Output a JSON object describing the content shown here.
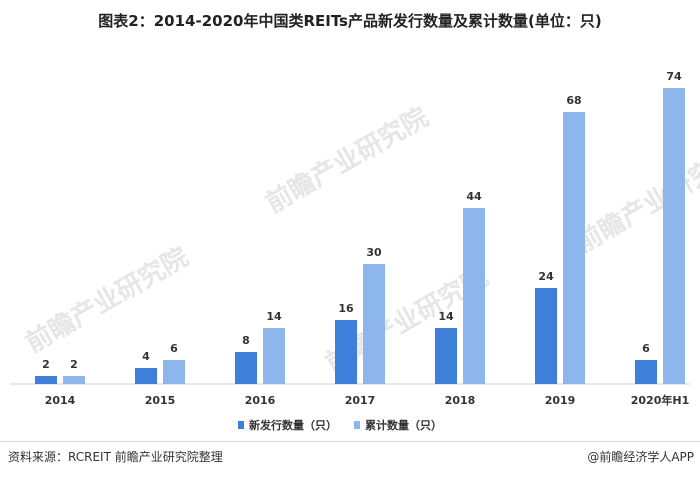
{
  "title": "图表2：2014-2020年中国类REITs产品新发行数量及累计数量(单位：只)",
  "source": "资料来源：RCREIT 前瞻产业研究院整理",
  "brand": "@前瞻经济学人APP",
  "watermark": "前瞻产业研究院",
  "colors": {
    "new": "#3D7FD9",
    "cumulative": "#8DB6EC",
    "axis": "#cfcfcf",
    "text": "#333333"
  },
  "chart_data": {
    "type": "bar",
    "categories": [
      "2014",
      "2015",
      "2016",
      "2017",
      "2018",
      "2019",
      "2020年H1"
    ],
    "series": [
      {
        "name": "新发行数量（只）",
        "values": [
          2,
          4,
          8,
          16,
          14,
          24,
          6
        ]
      },
      {
        "name": "累计数量（只）",
        "values": [
          2,
          6,
          14,
          30,
          44,
          68,
          74
        ]
      }
    ],
    "ylim": [
      0,
      80
    ],
    "grid": false,
    "legend": "bottom-center"
  }
}
